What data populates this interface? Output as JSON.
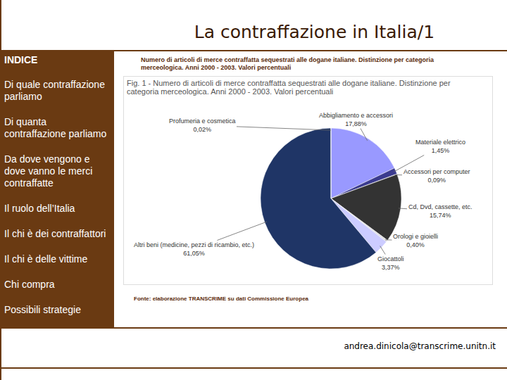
{
  "chart_data": {
    "type": "pie",
    "title": "Fig. 1 - Numero di articoli di merce contraffatta sequestrati alle dogane italiane. Distinzione per categoria merceologica. Anni 2000 - 2003. Valori percentuali",
    "categories": [
      "Abbigliamento e accessori",
      "Materiale elettrico",
      "Accessori per computer",
      "Cd, Dvd, cassette, etc.",
      "Orologi e gioielli",
      "Giocattoli",
      "Altri beni (medicine, pezzi di ricambio, etc.)",
      "Profumeria e cosmetica"
    ],
    "values": [
      17.88,
      1.45,
      0.09,
      15.74,
      0.4,
      3.37,
      61.05,
      0.02
    ],
    "value_labels": [
      "17,88%",
      "1,45%",
      "0,09%",
      "15,74%",
      "0,40%",
      "3,37%",
      "61,05%",
      "0,02%"
    ],
    "colors": [
      "#9999ff",
      "#3b3b8f",
      "#26264f",
      "#333333",
      "#dcdcdc",
      "#ccccff",
      "#1f3566",
      "#9999cc"
    ],
    "data_labels": true
  },
  "slide": {
    "title": "La contraffazione in Italia/1",
    "index": {
      "heading": "INDICE",
      "items": [
        "Di quale contraffazione parliamo",
        "Di quanta contraffazione parliamo",
        "Da dove vengono e dove vanno le merci contraffatte",
        "Il ruolo dell’Italia",
        "Il chi è dei contraffattori",
        "Il chi è delle vittime",
        "Chi compra",
        "Possibili strategie"
      ]
    },
    "caption": "Numero di articoli di merce contraffatta sequestrati alle dogane italiane. Distinzione per categoria merceologica. Anni 2000 - 2003. Valori percentuali",
    "source": "Fonte: elaborazione TRANSCRIME su dati Commissione Europea",
    "email": "andrea.dinicola@transcrime.unitn.it"
  }
}
